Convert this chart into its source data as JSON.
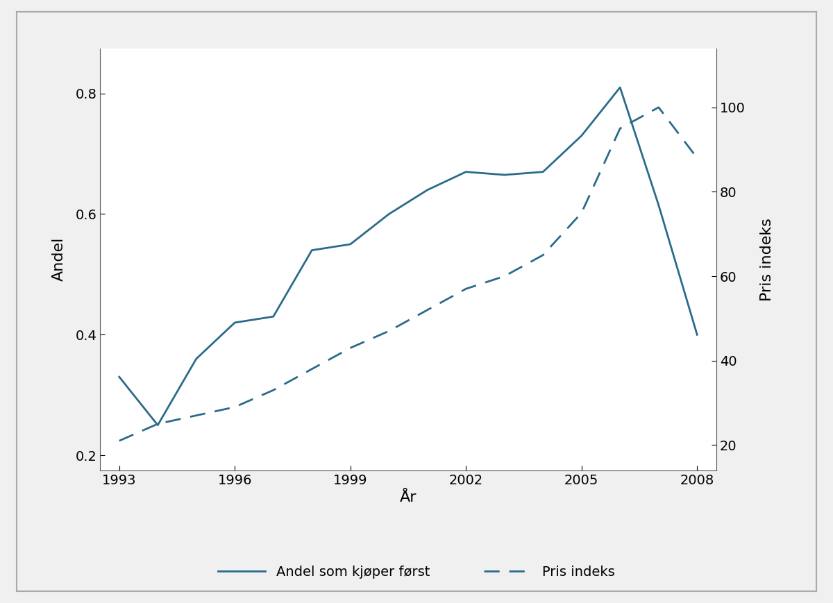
{
  "solid_x": [
    1993,
    1994,
    1995,
    1996,
    1997,
    1998,
    1999,
    2000,
    2001,
    2002,
    2003,
    2004,
    2005,
    2006,
    2007,
    2008
  ],
  "solid_y": [
    0.33,
    0.25,
    0.36,
    0.42,
    0.43,
    0.54,
    0.55,
    0.6,
    0.64,
    0.67,
    0.665,
    0.67,
    0.73,
    0.81,
    0.615,
    0.4
  ],
  "dashed_x": [
    1993,
    1994,
    1995,
    1996,
    1997,
    1998,
    1999,
    2000,
    2001,
    2002,
    2003,
    2004,
    2005,
    2006,
    2007,
    2008
  ],
  "dashed_y": [
    21,
    25,
    27,
    29,
    33,
    38,
    43,
    47,
    52,
    57,
    60,
    65,
    75,
    95,
    100,
    88
  ],
  "xlabel": "År",
  "ylabel_left": "Andel",
  "ylabel_right": "Pris indeks",
  "xticks": [
    1993,
    1996,
    1999,
    2002,
    2005,
    2008
  ],
  "xlim": [
    1992.5,
    2008.5
  ],
  "ylim_left": [
    0.175,
    0.875
  ],
  "ylim_right": [
    14,
    114
  ],
  "yticks_left": [
    0.2,
    0.4,
    0.6,
    0.8
  ],
  "yticks_right": [
    20,
    40,
    60,
    80,
    100
  ],
  "line_color": "#2a6b8a",
  "legend_solid": "Andel som kjøper først",
  "legend_dashed": "Pris indeks",
  "figsize": [
    12.0,
    8.69
  ],
  "dpi": 100,
  "bg_color": "#f0f0f0",
  "plot_bg_color": "#ffffff",
  "border_color": "#aaaaaa"
}
